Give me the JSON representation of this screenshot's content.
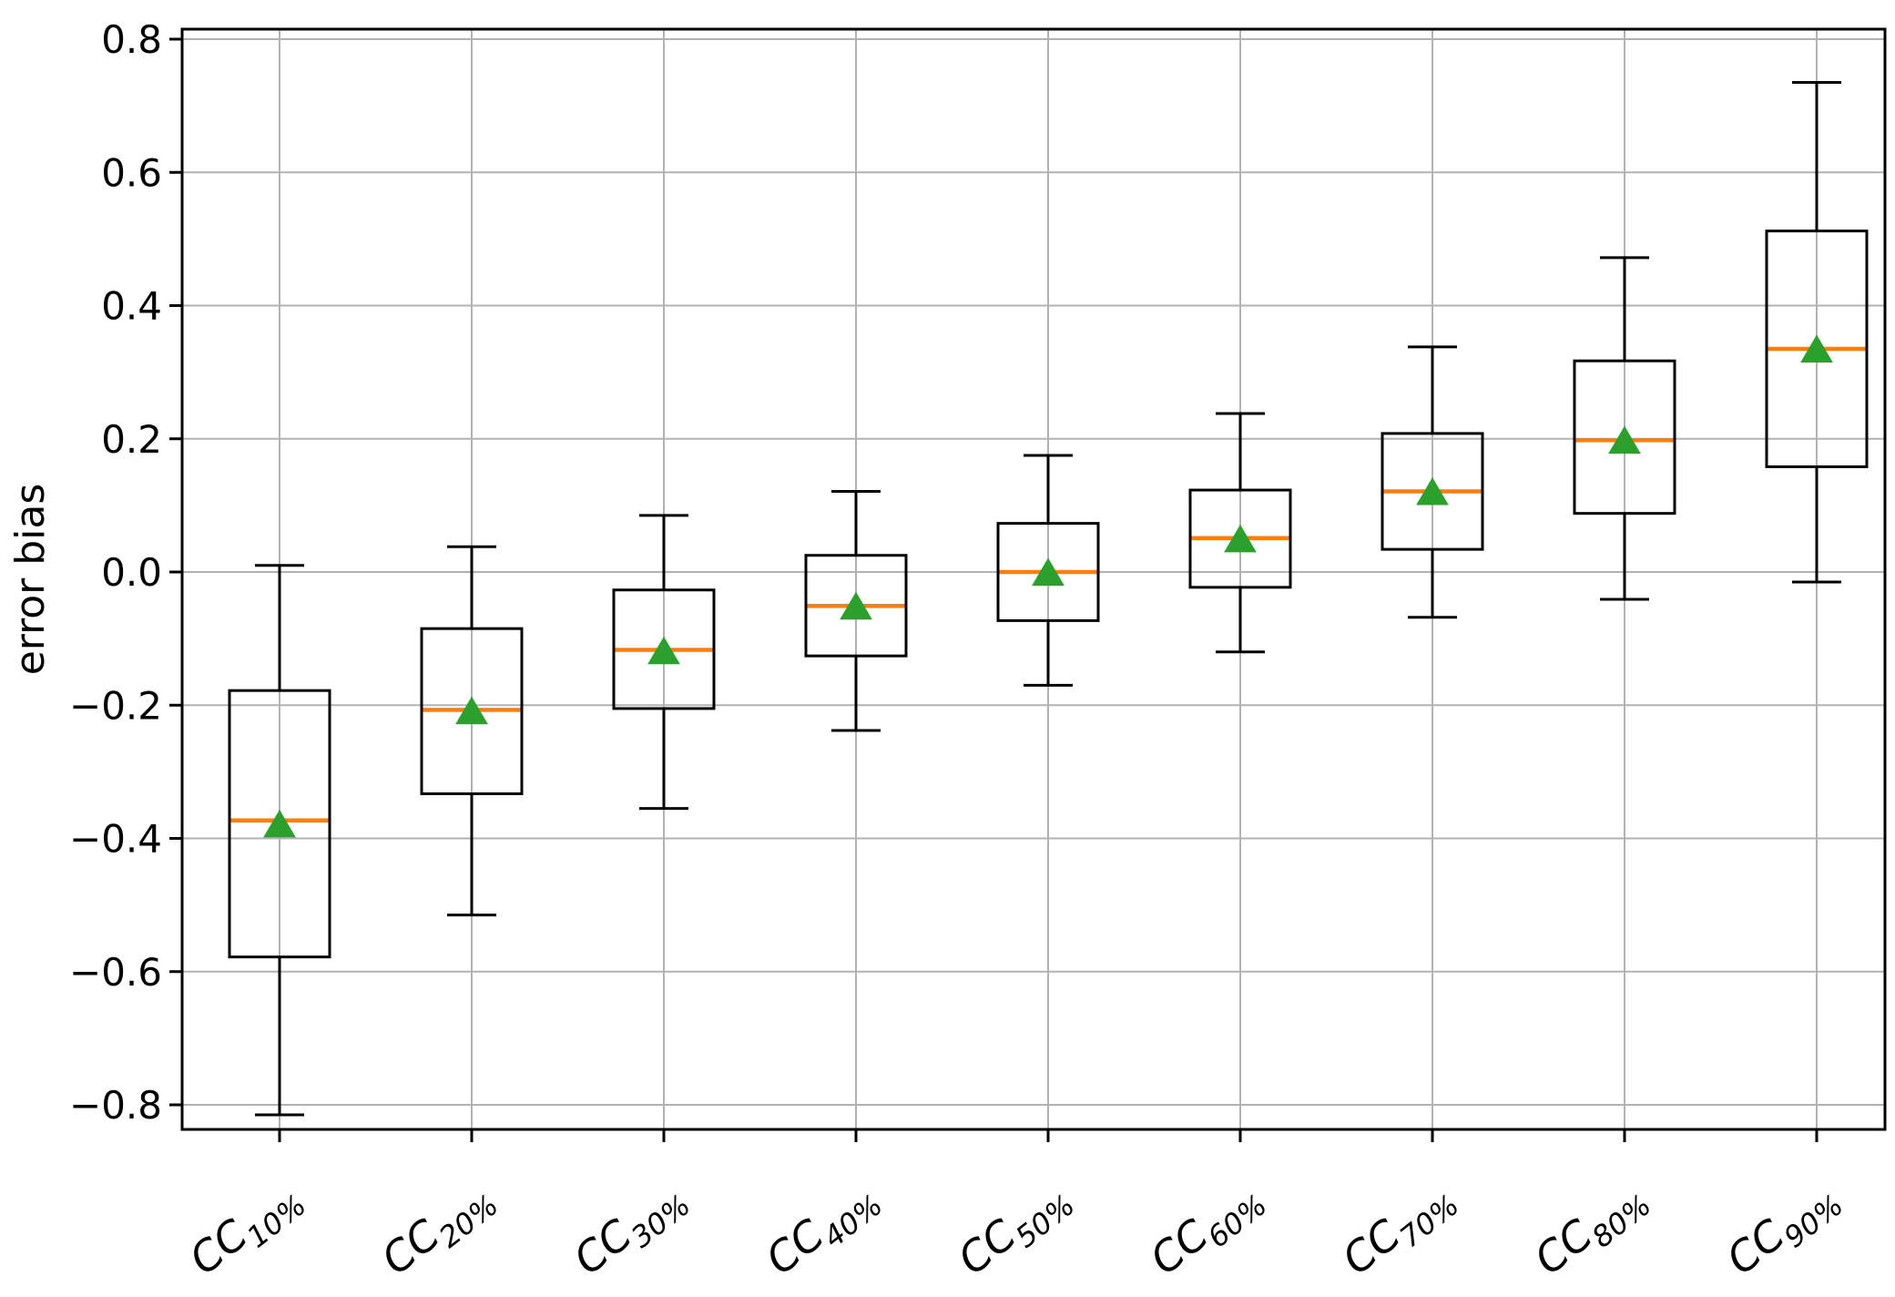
{
  "figure": {
    "title": "",
    "background_color": "#ffffff"
  },
  "chart_data": {
    "type": "boxplot",
    "title": "",
    "xlabel": "",
    "ylabel": "error bias",
    "ylim": [
      -0.85,
      0.84
    ],
    "grid": true,
    "legend": "none",
    "yticks": {
      "values": [
        0.8,
        0.6,
        0.4,
        0.2,
        0.0,
        -0.2,
        -0.4,
        -0.6,
        -0.8
      ],
      "labels": [
        "0.8",
        "0.6",
        "0.4",
        "0.2",
        "0.0",
        "−0.2",
        "−0.4",
        "−0.6",
        "−0.8"
      ]
    },
    "categories": [
      {
        "label": "CC10%",
        "main": "CC",
        "sub": "10%"
      },
      {
        "label": "CC20%",
        "main": "CC",
        "sub": "20%"
      },
      {
        "label": "CC30%",
        "main": "CC",
        "sub": "30%"
      },
      {
        "label": "CC40%",
        "main": "CC",
        "sub": "40%"
      },
      {
        "label": "CC50%",
        "main": "CC",
        "sub": "50%"
      },
      {
        "label": "CC60%",
        "main": "CC",
        "sub": "60%"
      },
      {
        "label": "CC70%",
        "main": "CC",
        "sub": "70%"
      },
      {
        "label": "CC80%",
        "main": "CC",
        "sub": "80%"
      },
      {
        "label": "CC90%",
        "main": "CC",
        "sub": "90%"
      }
    ],
    "boxes": [
      {
        "category": "CC10%",
        "whisker_low": -0.815,
        "q1": -0.578,
        "median": -0.373,
        "mean": -0.38,
        "q3": -0.178,
        "whisker_high": 0.01
      },
      {
        "category": "CC20%",
        "whisker_low": -0.515,
        "q1": -0.333,
        "median": -0.207,
        "mean": -0.21,
        "q3": -0.085,
        "whisker_high": 0.038
      },
      {
        "category": "CC30%",
        "whisker_low": -0.355,
        "q1": -0.205,
        "median": -0.117,
        "mean": -0.12,
        "q3": -0.027,
        "whisker_high": 0.085
      },
      {
        "category": "CC40%",
        "whisker_low": -0.238,
        "q1": -0.126,
        "median": -0.051,
        "mean": -0.053,
        "q3": 0.025,
        "whisker_high": 0.121
      },
      {
        "category": "CC50%",
        "whisker_low": -0.17,
        "q1": -0.073,
        "median": 0.0,
        "mean": -0.002,
        "q3": 0.073,
        "whisker_high": 0.175
      },
      {
        "category": "CC60%",
        "whisker_low": -0.12,
        "q1": -0.023,
        "median": 0.051,
        "mean": 0.048,
        "q3": 0.123,
        "whisker_high": 0.238
      },
      {
        "category": "CC70%",
        "whisker_low": -0.068,
        "q1": 0.034,
        "median": 0.121,
        "mean": 0.119,
        "q3": 0.208,
        "whisker_high": 0.338
      },
      {
        "category": "CC80%",
        "whisker_low": -0.041,
        "q1": 0.088,
        "median": 0.198,
        "mean": 0.196,
        "q3": 0.317,
        "whisker_high": 0.472
      },
      {
        "category": "CC90%",
        "whisker_low": -0.015,
        "q1": 0.158,
        "median": 0.335,
        "mean": 0.333,
        "q3": 0.512,
        "whisker_high": 0.735
      }
    ],
    "colors": {
      "box_edge": "#000000",
      "whisker": "#000000",
      "median": "#ff7f0e",
      "mean_marker": "#2ca02c",
      "grid": "#b2b2b2",
      "spine": "#000000"
    },
    "mean_marker_shape": "triangle-up"
  }
}
